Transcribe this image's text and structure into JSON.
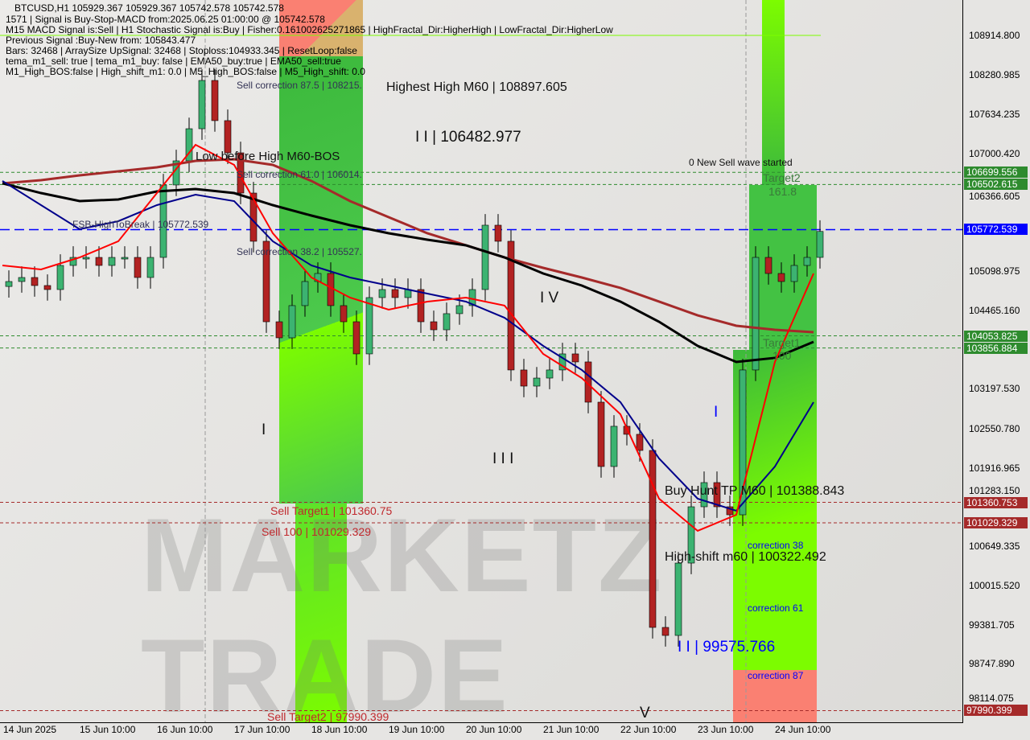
{
  "header": {
    "symbol_line": "BTCUSD,H1  105929.367 105929.367 105742.578 105742.578",
    "lines": [
      "1571 | Signal is Buy-Stop-MACD from:2025.06.25 01:00:00 @ 105742.578",
      "M15 MACD Signal is:Sell | H1 Stochastic Signal is:Buy | Fisher:0.161002625271865 | HighFractal_Dir:HigherHigh | LowFractal_Dir:HigherLow",
      "Previous Signal :Buy-New from: 105843.477",
      "Bars: 32468 | ArraySize UpSignal: 32468 | Stoploss:104933.345 | ResetLoop:false",
      "tema_m1_sell: true | tema_m1_buy: false | EMA50_buy:true | EMA50_sell:true",
      "M1_High_BOS:false | High_shift_m1: 0.0 | M5_High_BOS:false | M5_High_shift: 0.0"
    ]
  },
  "logo": "MARKETZITRADE",
  "annotations": {
    "highest_high": "Highest High   M60 | 108897.605",
    "sell_corr_875": "Sell correction 87.5 | 108215.",
    "low_before_high": "Low before High   M60-BOS",
    "sell_corr_610": "Sell correction 61.0 | 106014.",
    "fsb": "FSB-HighToBreak | 105772.539",
    "sell_corr_382": "Sell correction 38.2 | 105527.",
    "wave_iii_top": "I I | 106482.977",
    "wave_i": "I",
    "wave_iii": "I I I",
    "wave_iv": "I V",
    "wave_v": "V",
    "wave_i_blue": "I",
    "wave_iii_blue": "I I | 99575.766",
    "new_sell": "0 New Sell wave started",
    "target2": "Target2",
    "target2_val": "161.8",
    "target1": "Target1",
    "target1_val": "100",
    "buy_hunt": "Buy Hunt TP M60 | 101388.843",
    "high_shift": "High-shift m60 | 100322.492",
    "corr38": "correction 38",
    "corr61": "correction 61",
    "corr87": "correction 87",
    "sell_target1": "Sell Target1 | 101360.75",
    "sell_100": "Sell 100 | 101029.329",
    "sell_target2": "Sell Target2 | 97990.399"
  },
  "chart_data": {
    "type": "candlestick",
    "symbol": "BTCUSD",
    "timeframe": "H1",
    "candles_approx": {
      "start": "2025-06-14 10:00",
      "interval_hours": 4,
      "close": [
        104933,
        104998,
        104868,
        104803,
        105193,
        105323,
        105323,
        105193,
        105323,
        105323,
        104998,
        105323,
        106495,
        106885,
        107405,
        108186,
        107536,
        107015,
        106364,
        105584,
        104282,
        104022,
        104543,
        104933,
        105063,
        104543,
        104282,
        103762,
        104673,
        104803,
        104673,
        104803,
        104282,
        104152,
        104413,
        104543,
        104803,
        105844,
        105584,
        103502,
        103241,
        103371,
        103502,
        103762,
        103632,
        102981,
        101940,
        102591,
        102461,
        102200,
        99337,
        99207,
        100378,
        101289,
        101680,
        101289,
        101159,
        103502,
        105323,
        105063,
        104933,
        105193,
        105323,
        105743
      ]
    },
    "moving_averages": {
      "start": "2025-06-14 10:00",
      "interval_hours": 12,
      "series": [
        {
          "color": "#a52a2a",
          "values": [
            106521,
            106573,
            106651,
            106716,
            106781,
            106885,
            106911,
            106820,
            106560,
            106234,
            105974,
            105714,
            105519,
            105323,
            105154,
            104998,
            104829,
            104608,
            104386,
            104217,
            104152,
            104113
          ]
        },
        {
          "color": "#000000",
          "values": [
            106521,
            106364,
            106234,
            106260,
            106390,
            106430,
            106364,
            106169,
            106000,
            105844,
            105714,
            105610,
            105519,
            105323,
            105063,
            104868,
            104608,
            104282,
            103892,
            103632,
            103697,
            103957
          ]
        },
        {
          "color": "#00008b",
          "values": [
            106560,
            106169,
            105779,
            105909,
            106169,
            106338,
            106234,
            105584,
            105193,
            104998,
            104868,
            104738,
            104608,
            104347,
            103892,
            103502,
            102981,
            102070,
            101420,
            101224,
            101940,
            102981
          ]
        },
        {
          "color": "#ff0000",
          "values": [
            105193,
            105128,
            105323,
            105584,
            106364,
            107145,
            106820,
            105714,
            104998,
            104673,
            104478,
            104608,
            104673,
            104543,
            103762,
            103371,
            102786,
            101420,
            100899,
            101159,
            103632,
            105063
          ]
        }
      ]
    },
    "y_ticks": [
      "108914.800",
      "108280.985",
      "107634.235",
      "107000.420",
      "106366.605",
      "105098.975",
      "104465.160",
      "103197.530",
      "102550.780",
      "101916.965",
      "101283.150",
      "100649.335",
      "100015.520",
      "99381.705",
      "98747.890",
      "98114.075"
    ],
    "x_ticks": [
      "14 Jun 2025",
      "15 Jun 10:00",
      "16 Jun 10:00",
      "17 Jun 10:00",
      "18 Jun 10:00",
      "19 Jun 10:00",
      "20 Jun 10:00",
      "21 Jun 10:00",
      "22 Jun 10:00",
      "23 Jun 10:00",
      "24 Jun 10:00"
    ],
    "price_levels": [
      {
        "label": "106699.556",
        "color": "#2e8b2e"
      },
      {
        "label": "106502.615",
        "color": "#2e8b2e"
      },
      {
        "label": "105772.539",
        "color": "#0000ff"
      },
      {
        "label": "104053.825",
        "color": "#2e8b2e"
      },
      {
        "label": "103856.884",
        "color": "#2e8b2e"
      },
      {
        "label": "101360.753",
        "color": "#a52a2a"
      },
      {
        "label": "101029.329",
        "color": "#a52a2a"
      },
      {
        "label": "97990.399",
        "color": "#a52a2a"
      }
    ],
    "ylim": [
      97950,
      109300
    ]
  }
}
